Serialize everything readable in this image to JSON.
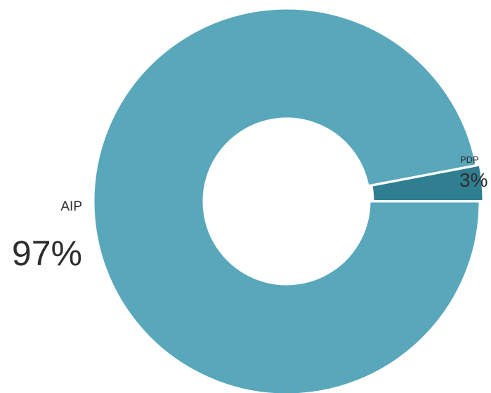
{
  "chart_data": {
    "type": "pie",
    "donut": true,
    "slices": [
      {
        "label": "AIP",
        "value": 97,
        "value_label": "97%",
        "color": "#59a7bb"
      },
      {
        "label": "PDP",
        "value": 3,
        "value_label": "3%",
        "color": "#2f7f90"
      }
    ],
    "legend": "none"
  }
}
